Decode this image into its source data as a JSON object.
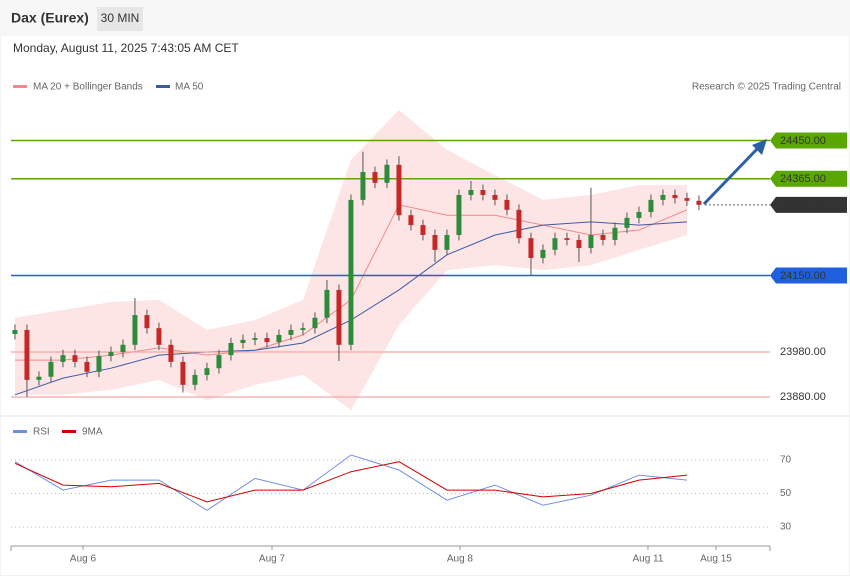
{
  "header": {
    "title": "Dax (Eurex)",
    "timeframe": "30 MIN",
    "timestamp": "Monday, August 11, 2025 7:43:05 AM CET"
  },
  "chart_data": [
    {
      "type": "candlestick",
      "credit": "Research © 2025 Trading Central",
      "xlim": [
        -0.33,
        62.92
      ],
      "ylim": [
        23840,
        24540
      ],
      "up_color": "#2e8b3a",
      "down_color": "#c62828",
      "open": [
        24020,
        24029,
        23918,
        23925,
        23958,
        23973,
        23958,
        23936,
        23971,
        23980,
        23996,
        24062,
        24033,
        23996,
        23958,
        23907,
        23929,
        23944,
        23973,
        24000,
        24007,
        24011,
        24002,
        24018,
        24029,
        24033,
        24056,
        24118,
        23996,
        24318,
        24380,
        24356,
        24396,
        24284,
        24262,
        24240,
        24207,
        24240,
        24329,
        24340,
        24329,
        24318,
        24296,
        24233,
        24189,
        24207,
        24233,
        24229,
        24211,
        24240,
        24229,
        24256,
        24278,
        24291,
        24318,
        24329,
        24322,
        24316
      ],
      "high": [
        24041,
        24041,
        23937,
        23970,
        23985,
        23985,
        23970,
        23983,
        23992,
        24008,
        24100,
        24074,
        24045,
        24008,
        23970,
        23941,
        23956,
        23985,
        24012,
        24019,
        24023,
        24023,
        24030,
        24041,
        24045,
        24068,
        24140,
        24130,
        24330,
        24425,
        24392,
        24408,
        24415,
        24296,
        24274,
        24252,
        24252,
        24341,
        24360,
        24352,
        24341,
        24330,
        24308,
        24245,
        24219,
        24245,
        24245,
        24241,
        24345,
        24252,
        24268,
        24290,
        24303,
        24330,
        24341,
        24341,
        24334,
        24328
      ],
      "low": [
        24008,
        23880,
        23906,
        23913,
        23946,
        23946,
        23924,
        23924,
        23959,
        23968,
        23984,
        24021,
        23984,
        23946,
        23890,
        23895,
        23917,
        23932,
        23961,
        23988,
        23995,
        23990,
        23990,
        24006,
        24017,
        24021,
        24044,
        23960,
        23984,
        24306,
        24344,
        24344,
        24272,
        24250,
        24228,
        24180,
        24195,
        24228,
        24317,
        24317,
        24306,
        24284,
        24221,
        24150,
        24177,
        24195,
        24217,
        24180,
        24199,
        24217,
        24217,
        24244,
        24266,
        24279,
        24306,
        24310,
        24304,
        24295
      ],
      "close": [
        24029,
        23918,
        23925,
        23958,
        23973,
        23958,
        23936,
        23971,
        23980,
        23996,
        24062,
        24033,
        23996,
        23958,
        23907,
        23929,
        23944,
        23973,
        24000,
        24007,
        24011,
        24002,
        24018,
        24029,
        24033,
        24056,
        24118,
        23996,
        24318,
        24380,
        24356,
        24396,
        24284,
        24262,
        24240,
        24207,
        24240,
        24329,
        24340,
        24329,
        24318,
        24296,
        24233,
        24189,
        24207,
        24233,
        24229,
        24211,
        24240,
        24229,
        24256,
        24278,
        24291,
        24318,
        24329,
        24322,
        24316,
        24307
      ],
      "line_x": [
        0,
        4,
        8,
        12,
        16,
        20,
        24,
        28,
        32,
        36,
        40,
        44,
        48,
        52,
        56
      ],
      "bands": {
        "name": "MA 20 + Bollinger Bands",
        "color": "#f08a8a",
        "fill": "#fde0e0",
        "ma": [
          23962,
          23962,
          23973,
          23989,
          23973,
          23984,
          24018,
          24096,
          24307,
          24284,
          24284,
          24262,
          24240,
          24251,
          24296
        ],
        "upper": [
          24056,
          24073,
          24091,
          24096,
          24029,
          24051,
          24096,
          24407,
          24518,
          24429,
          24373,
          24318,
          24329,
          24351,
          24351
        ],
        "lower": [
          23885,
          23885,
          23896,
          23918,
          23873,
          23907,
          23929,
          23851,
          24040,
          24162,
          24173,
          24162,
          24173,
          24207,
          24240
        ]
      },
      "ma50": {
        "name": "MA 50",
        "color": "#3b5ba5",
        "values": [
          23885,
          23922,
          23944,
          23973,
          23980,
          23984,
          24000,
          24051,
          24118,
          24196,
          24240,
          24262,
          24269,
          24262,
          24269
        ]
      },
      "levels": [
        {
          "value": 24450,
          "label": "24450.00",
          "color": "#5aa700",
          "style": "box"
        },
        {
          "value": 24365,
          "label": "24365.00",
          "color": "#5aa700",
          "style": "box"
        },
        {
          "value": 24307,
          "label": "24307.00",
          "color": "#333333",
          "style": "current"
        },
        {
          "value": 24150,
          "label": "24150.00",
          "color": "#1f5fe0",
          "style": "box"
        },
        {
          "value": 23980,
          "label": "23980.00",
          "color": "#e53935",
          "style": "text"
        },
        {
          "value": 23880,
          "label": "23880.00",
          "color": "#e53935",
          "style": "text"
        }
      ]
    },
    {
      "type": "line",
      "xlim": [
        -0.33,
        62.92
      ],
      "ylim": [
        20,
        82
      ],
      "yticks": [
        70,
        50,
        30
      ],
      "grid": true,
      "x": [
        0,
        4,
        8,
        12,
        16,
        20,
        24,
        28,
        32,
        36,
        40,
        44,
        48,
        52,
        56
      ],
      "xticks": [
        {
          "value": 5.67,
          "label": "Aug 6"
        },
        {
          "value": 21.42,
          "label": "Aug 7"
        },
        {
          "value": 37.08,
          "label": "Aug 8"
        },
        {
          "value": 52.75,
          "label": "Aug 11"
        },
        {
          "value": 58.42,
          "label": "Aug 15"
        }
      ],
      "series": [
        {
          "name": "RSI",
          "color": "#6f8fe0",
          "values": [
            69,
            52,
            58,
            58,
            40,
            59,
            52,
            73,
            64,
            46,
            55,
            43,
            49,
            61,
            58
          ]
        },
        {
          "name": "9MA",
          "color": "#d40000",
          "values": [
            68,
            55,
            54,
            56,
            45,
            52,
            52,
            63,
            69,
            52,
            52,
            48,
            50,
            58,
            61
          ]
        }
      ]
    }
  ]
}
